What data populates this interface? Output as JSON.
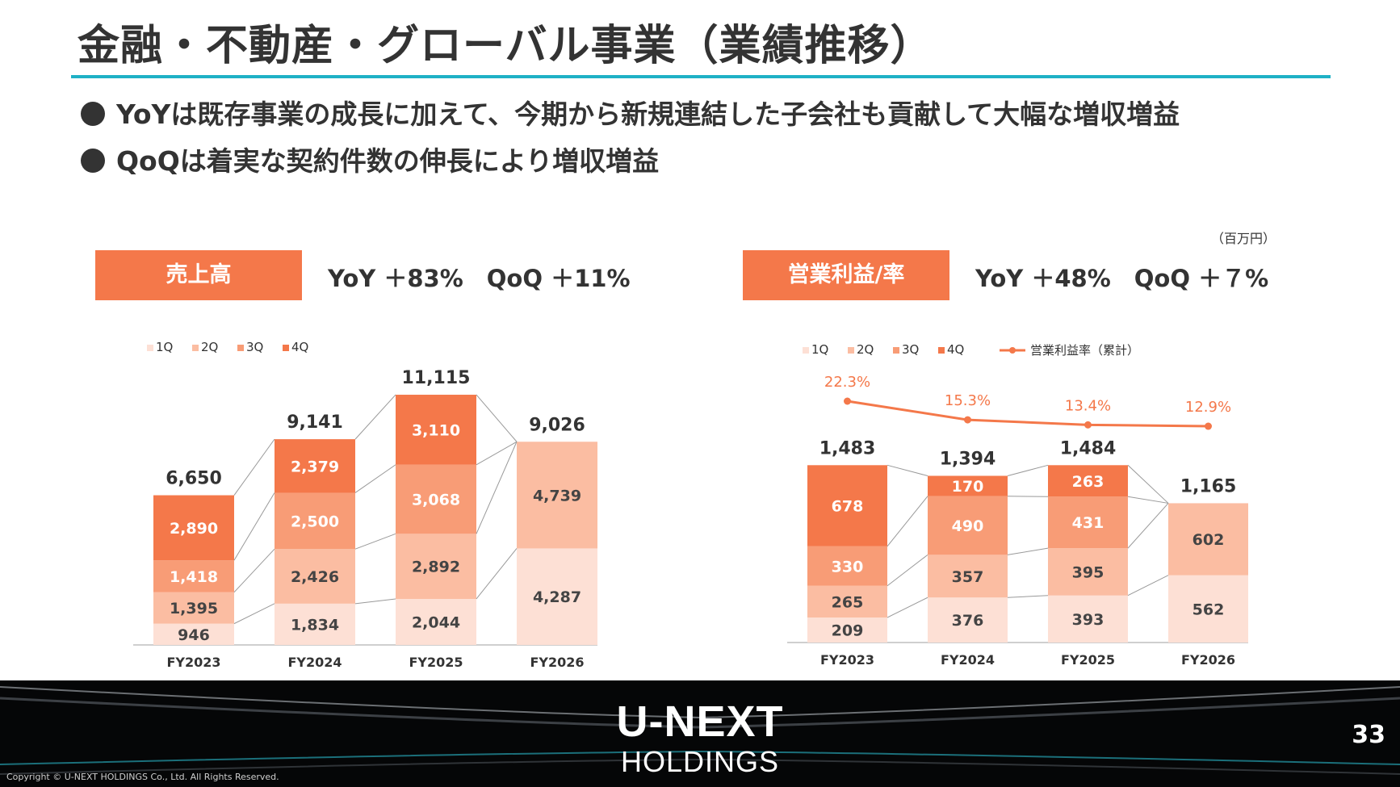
{
  "title": "金融・不動産・グローバル事業（業績推移）",
  "bullets": [
    "YoYは既存事業の成長に加えて、今期から新規連結した子会社も貢献して大幅な増収増益",
    "QoQは着実な契約件数の伸長により増収増益"
  ],
  "unit": "（百万円）",
  "revenue_panel": {
    "label": "売上高",
    "growth": "YoY ＋83%　QoQ ＋11%"
  },
  "profit_panel": {
    "label": "営業利益/率",
    "growth": "YoY ＋48%　QoQ ＋７%"
  },
  "colors": {
    "q1": "#fde0d5",
    "q2": "#fbbda2",
    "q3": "#f89c76",
    "q4": "#f4784a",
    "line": "#f4784a",
    "accent": "#1fb1c6"
  },
  "chart_data": [
    {
      "type": "bar",
      "stacked": true,
      "title": "売上高",
      "categories": [
        "FY2023",
        "FY2024",
        "FY2025",
        "FY2026"
      ],
      "series": [
        {
          "name": "1Q",
          "values": [
            946,
            1834,
            2044,
            4287
          ]
        },
        {
          "name": "2Q",
          "values": [
            1395,
            2426,
            2892,
            4739
          ]
        },
        {
          "name": "3Q",
          "values": [
            1418,
            2500,
            3068,
            null
          ]
        },
        {
          "name": "4Q",
          "values": [
            2890,
            2379,
            3110,
            null
          ]
        }
      ],
      "value_labels": [
        [
          "946",
          "1,834",
          "2,044",
          "4,287"
        ],
        [
          "1,395",
          "2,426",
          "2,892",
          "4,739"
        ],
        [
          "1,418",
          "2,500",
          "3,068",
          ""
        ],
        [
          "2,890",
          "2,379",
          "3,110",
          ""
        ]
      ],
      "totals": [
        6650,
        9141,
        11115,
        9026
      ],
      "total_labels": [
        "6,650",
        "9,141",
        "11,115",
        "9,026"
      ],
      "ylim": [
        0,
        11115
      ],
      "legend_position": "top-left"
    },
    {
      "type": "bar",
      "stacked": true,
      "title": "営業利益/率",
      "categories": [
        "FY2023",
        "FY2024",
        "FY2025",
        "FY2026"
      ],
      "series": [
        {
          "name": "1Q",
          "values": [
            209,
            376,
            393,
            562
          ]
        },
        {
          "name": "2Q",
          "values": [
            265,
            357,
            395,
            602
          ]
        },
        {
          "name": "3Q",
          "values": [
            330,
            490,
            431,
            null
          ]
        },
        {
          "name": "4Q",
          "values": [
            678,
            170,
            263,
            null
          ]
        }
      ],
      "value_labels": [
        [
          "209",
          "376",
          "393",
          "562"
        ],
        [
          "265",
          "357",
          "395",
          "602"
        ],
        [
          "330",
          "490",
          "431",
          ""
        ],
        [
          "678",
          "170",
          "263",
          ""
        ]
      ],
      "totals": [
        1483,
        1394,
        1484,
        1165
      ],
      "total_labels": [
        "1,483",
        "1,394",
        "1,484",
        "1,165"
      ],
      "line": {
        "name": "営業利益率（累計）",
        "values": [
          22.3,
          15.3,
          13.4,
          12.9
        ],
        "labels": [
          "22.3%",
          "15.3%",
          "13.4%",
          "12.9%"
        ]
      },
      "ylim": [
        0,
        1484
      ],
      "legend_position": "top-left"
    }
  ],
  "footer": {
    "brand_top": "U-NEXT",
    "brand_bottom": "HOLDINGS",
    "page_number": "33",
    "copyright": "Copyright © U-NEXT HOLDINGS Co., Ltd. All Rights Reserved."
  }
}
